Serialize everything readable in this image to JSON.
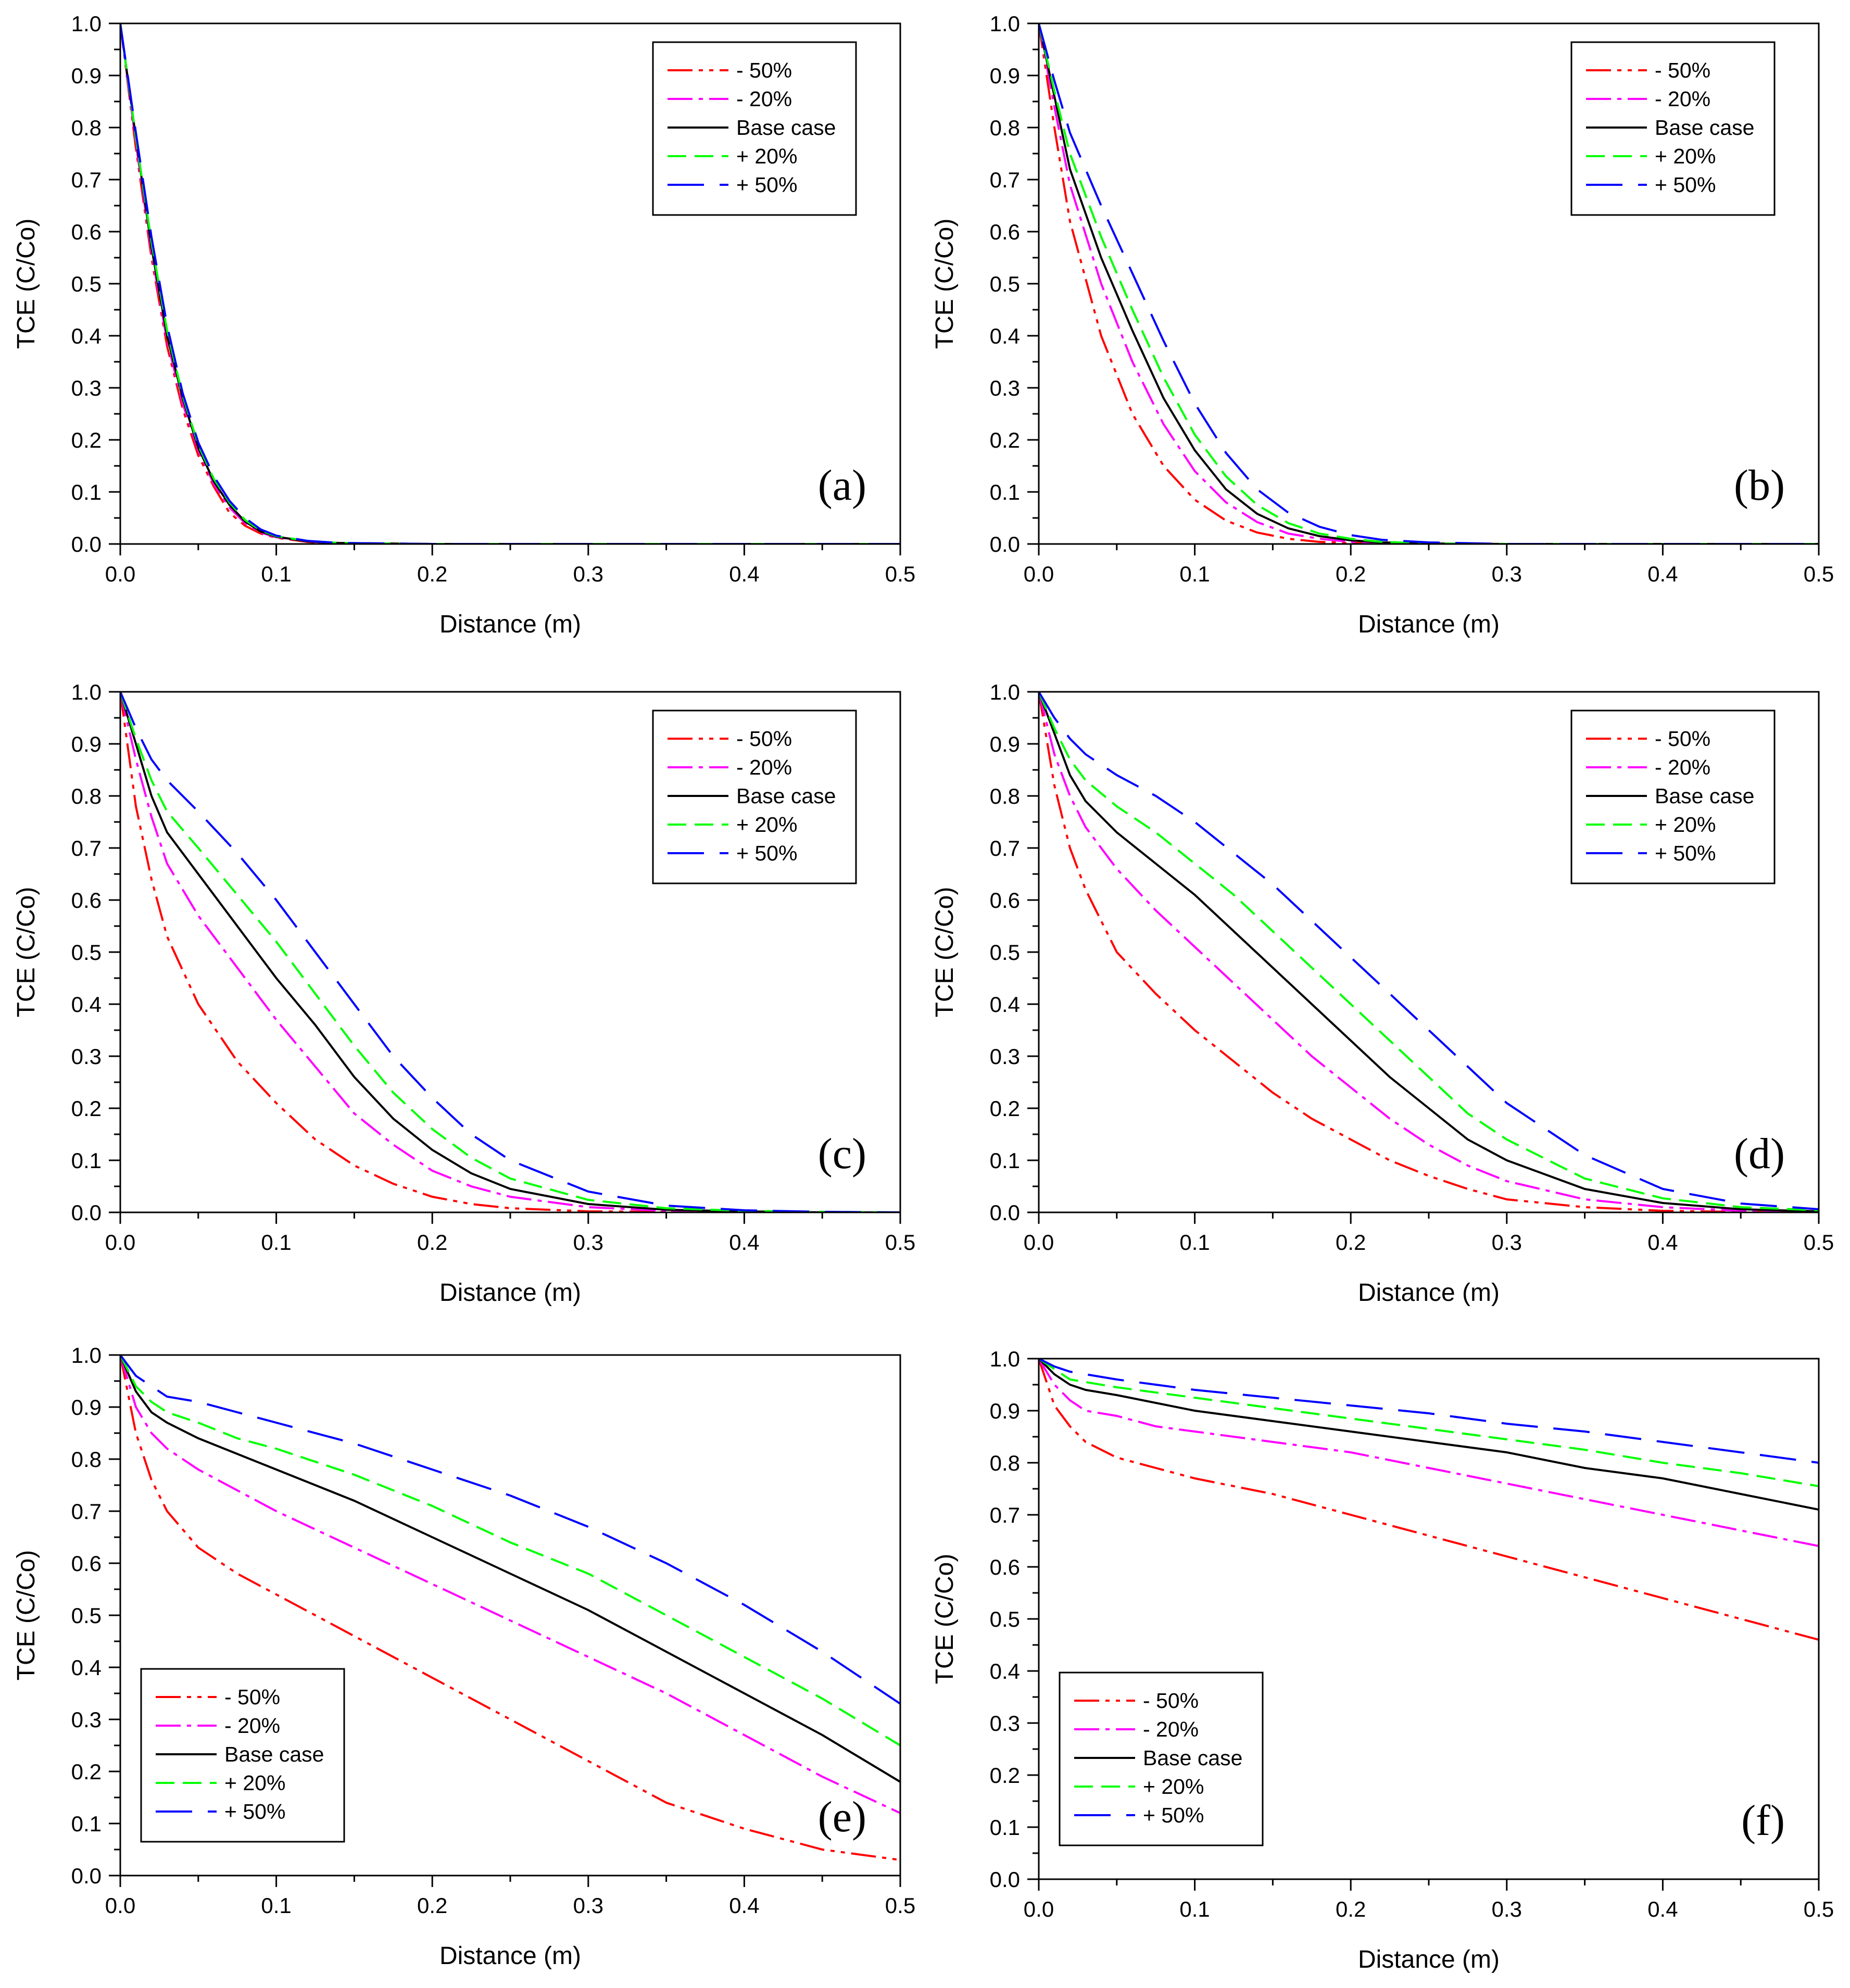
{
  "chart_data": [
    {
      "type": "line",
      "panel": "(a)",
      "xlabel": "Distance (m)",
      "ylabel": "TCE (C/Co)",
      "xlim": [
        0,
        0.5
      ],
      "ylim": [
        0,
        1.0
      ],
      "x": [
        0,
        0.01,
        0.02,
        0.03,
        0.04,
        0.05,
        0.06,
        0.07,
        0.08,
        0.09,
        0.1,
        0.12,
        0.14,
        0.2,
        0.3,
        0.4,
        0.5
      ],
      "series": [
        {
          "name": "- 50%",
          "values": [
            1.0,
            0.76,
            0.55,
            0.38,
            0.26,
            0.17,
            0.11,
            0.06,
            0.035,
            0.02,
            0.012,
            0.004,
            0.001,
            0,
            0,
            0,
            0
          ]
        },
        {
          "name": "- 20%",
          "values": [
            1.0,
            0.77,
            0.56,
            0.39,
            0.27,
            0.18,
            0.115,
            0.07,
            0.04,
            0.022,
            0.013,
            0.005,
            0.001,
            0,
            0,
            0,
            0
          ]
        },
        {
          "name": "Base case",
          "values": [
            1.0,
            0.78,
            0.57,
            0.4,
            0.28,
            0.185,
            0.12,
            0.075,
            0.043,
            0.024,
            0.014,
            0.005,
            0.002,
            0,
            0,
            0,
            0
          ]
        },
        {
          "name": "+ 20%",
          "values": [
            1.0,
            0.78,
            0.58,
            0.41,
            0.285,
            0.19,
            0.125,
            0.08,
            0.046,
            0.026,
            0.015,
            0.006,
            0.002,
            0,
            0,
            0,
            0
          ]
        },
        {
          "name": "+ 50%",
          "values": [
            1.0,
            0.79,
            0.59,
            0.42,
            0.29,
            0.195,
            0.13,
            0.083,
            0.05,
            0.028,
            0.016,
            0.006,
            0.002,
            0,
            0,
            0,
            0
          ]
        }
      ]
    },
    {
      "type": "line",
      "panel": "(b)",
      "xlabel": "Distance (m)",
      "ylabel": "TCE (C/Co)",
      "xlim": [
        0,
        0.5
      ],
      "ylim": [
        0,
        1.0
      ],
      "x": [
        0,
        0.01,
        0.02,
        0.04,
        0.06,
        0.08,
        0.1,
        0.12,
        0.14,
        0.16,
        0.18,
        0.2,
        0.22,
        0.25,
        0.3,
        0.4,
        0.5
      ],
      "series": [
        {
          "name": "- 50%",
          "values": [
            1.0,
            0.8,
            0.62,
            0.4,
            0.25,
            0.15,
            0.085,
            0.045,
            0.022,
            0.01,
            0.004,
            0.002,
            0.001,
            0,
            0,
            0,
            0
          ]
        },
        {
          "name": "- 20%",
          "values": [
            1.0,
            0.84,
            0.69,
            0.5,
            0.35,
            0.23,
            0.14,
            0.08,
            0.042,
            0.02,
            0.01,
            0.004,
            0.002,
            0,
            0,
            0,
            0
          ]
        },
        {
          "name": "Base case",
          "values": [
            1.0,
            0.86,
            0.72,
            0.55,
            0.41,
            0.28,
            0.18,
            0.105,
            0.058,
            0.03,
            0.015,
            0.007,
            0.003,
            0.001,
            0,
            0,
            0
          ]
        },
        {
          "name": "+ 20%",
          "values": [
            1.0,
            0.87,
            0.75,
            0.59,
            0.45,
            0.32,
            0.21,
            0.13,
            0.075,
            0.04,
            0.02,
            0.01,
            0.004,
            0.001,
            0,
            0,
            0
          ]
        },
        {
          "name": "+ 50%",
          "values": [
            1.0,
            0.89,
            0.79,
            0.65,
            0.52,
            0.39,
            0.27,
            0.175,
            0.105,
            0.06,
            0.033,
            0.017,
            0.008,
            0.003,
            0,
            0,
            0
          ]
        }
      ]
    },
    {
      "type": "line",
      "panel": "(c)",
      "xlabel": "Distance (m)",
      "ylabel": "TCE (C/Co)",
      "xlim": [
        0,
        0.5
      ],
      "ylim": [
        0,
        1.0
      ],
      "x": [
        0,
        0.01,
        0.02,
        0.03,
        0.05,
        0.075,
        0.1,
        0.125,
        0.15,
        0.175,
        0.2,
        0.225,
        0.25,
        0.3,
        0.35,
        0.4,
        0.45,
        0.5
      ],
      "series": [
        {
          "name": "- 50%",
          "values": [
            1.0,
            0.78,
            0.64,
            0.53,
            0.4,
            0.29,
            0.21,
            0.14,
            0.09,
            0.055,
            0.03,
            0.016,
            0.008,
            0.002,
            0.001,
            0,
            0,
            0
          ]
        },
        {
          "name": "- 20%",
          "values": [
            1.0,
            0.87,
            0.76,
            0.67,
            0.57,
            0.47,
            0.37,
            0.28,
            0.19,
            0.13,
            0.08,
            0.05,
            0.03,
            0.01,
            0.003,
            0.001,
            0,
            0
          ]
        },
        {
          "name": "Base case",
          "values": [
            1.0,
            0.9,
            0.8,
            0.73,
            0.65,
            0.55,
            0.45,
            0.36,
            0.26,
            0.18,
            0.12,
            0.075,
            0.045,
            0.016,
            0.005,
            0.002,
            0,
            0
          ]
        },
        {
          "name": "+ 20%",
          "values": [
            1.0,
            0.91,
            0.83,
            0.77,
            0.7,
            0.61,
            0.52,
            0.42,
            0.32,
            0.23,
            0.16,
            0.105,
            0.065,
            0.024,
            0.008,
            0.003,
            0.001,
            0
          ]
        },
        {
          "name": "+ 50%",
          "values": [
            1.0,
            0.93,
            0.87,
            0.83,
            0.77,
            0.69,
            0.6,
            0.5,
            0.4,
            0.3,
            0.22,
            0.15,
            0.1,
            0.04,
            0.013,
            0.004,
            0.001,
            0
          ]
        }
      ]
    },
    {
      "type": "line",
      "panel": "(d)",
      "xlabel": "Distance (m)",
      "ylabel": "TCE (C/Co)",
      "xlim": [
        0,
        0.5
      ],
      "ylim": [
        0,
        1.0
      ],
      "x": [
        0,
        0.01,
        0.02,
        0.03,
        0.05,
        0.075,
        0.1,
        0.125,
        0.15,
        0.175,
        0.2,
        0.225,
        0.25,
        0.275,
        0.3,
        0.35,
        0.4,
        0.45,
        0.5
      ],
      "series": [
        {
          "name": "- 50%",
          "values": [
            1.0,
            0.82,
            0.7,
            0.62,
            0.5,
            0.42,
            0.35,
            0.29,
            0.23,
            0.18,
            0.14,
            0.1,
            0.07,
            0.045,
            0.025,
            0.01,
            0.003,
            0.001,
            0
          ]
        },
        {
          "name": "- 20%",
          "values": [
            1.0,
            0.88,
            0.8,
            0.74,
            0.66,
            0.58,
            0.51,
            0.44,
            0.37,
            0.3,
            0.24,
            0.18,
            0.13,
            0.09,
            0.06,
            0.025,
            0.01,
            0.003,
            0.001
          ]
        },
        {
          "name": "Base case",
          "values": [
            1.0,
            0.92,
            0.84,
            0.79,
            0.73,
            0.67,
            0.61,
            0.54,
            0.47,
            0.4,
            0.33,
            0.26,
            0.2,
            0.14,
            0.1,
            0.045,
            0.018,
            0.006,
            0.002
          ]
        },
        {
          "name": "+ 20%",
          "values": [
            1.0,
            0.93,
            0.87,
            0.83,
            0.78,
            0.73,
            0.67,
            0.61,
            0.54,
            0.47,
            0.4,
            0.33,
            0.26,
            0.19,
            0.14,
            0.065,
            0.027,
            0.01,
            0.004
          ]
        },
        {
          "name": "+ 50%",
          "values": [
            1.0,
            0.95,
            0.91,
            0.88,
            0.84,
            0.8,
            0.75,
            0.69,
            0.63,
            0.56,
            0.49,
            0.42,
            0.35,
            0.28,
            0.21,
            0.11,
            0.045,
            0.017,
            0.006
          ]
        }
      ]
    },
    {
      "type": "line",
      "panel": "(e)",
      "xlabel": "Distance (m)",
      "ylabel": "TCE (C/Co)",
      "xlim": [
        0,
        0.5
      ],
      "ylim": [
        0,
        1.0
      ],
      "x": [
        0,
        0.01,
        0.02,
        0.03,
        0.05,
        0.075,
        0.1,
        0.15,
        0.2,
        0.25,
        0.3,
        0.35,
        0.4,
        0.45,
        0.5
      ],
      "series": [
        {
          "name": "- 50%",
          "values": [
            1.0,
            0.85,
            0.76,
            0.7,
            0.63,
            0.58,
            0.54,
            0.46,
            0.38,
            0.3,
            0.22,
            0.14,
            0.09,
            0.05,
            0.03
          ]
        },
        {
          "name": "- 20%",
          "values": [
            1.0,
            0.9,
            0.85,
            0.82,
            0.78,
            0.74,
            0.7,
            0.63,
            0.56,
            0.49,
            0.42,
            0.35,
            0.27,
            0.19,
            0.12
          ]
        },
        {
          "name": "Base case",
          "values": [
            1.0,
            0.93,
            0.89,
            0.87,
            0.84,
            0.81,
            0.78,
            0.72,
            0.65,
            0.58,
            0.51,
            0.43,
            0.35,
            0.27,
            0.18
          ]
        },
        {
          "name": "+ 20%",
          "values": [
            1.0,
            0.94,
            0.91,
            0.89,
            0.87,
            0.84,
            0.82,
            0.77,
            0.71,
            0.64,
            0.58,
            0.5,
            0.42,
            0.34,
            0.25
          ]
        },
        {
          "name": "+ 50%",
          "values": [
            1.0,
            0.96,
            0.94,
            0.92,
            0.91,
            0.89,
            0.87,
            0.83,
            0.78,
            0.73,
            0.67,
            0.6,
            0.52,
            0.43,
            0.33
          ]
        }
      ]
    },
    {
      "type": "line",
      "panel": "(f)",
      "xlabel": "Distance (m)",
      "ylabel": "TCE (C/Co)",
      "xlim": [
        0,
        0.5
      ],
      "ylim": [
        0,
        1.0
      ],
      "x": [
        0,
        0.01,
        0.02,
        0.03,
        0.05,
        0.075,
        0.1,
        0.15,
        0.2,
        0.25,
        0.3,
        0.35,
        0.4,
        0.45,
        0.5
      ],
      "series": [
        {
          "name": "- 50%",
          "values": [
            1.0,
            0.91,
            0.87,
            0.84,
            0.81,
            0.79,
            0.77,
            0.74,
            0.7,
            0.66,
            0.62,
            0.58,
            0.54,
            0.5,
            0.46
          ]
        },
        {
          "name": "- 20%",
          "values": [
            1.0,
            0.95,
            0.92,
            0.9,
            0.89,
            0.87,
            0.86,
            0.84,
            0.82,
            0.79,
            0.76,
            0.73,
            0.7,
            0.67,
            0.64
          ]
        },
        {
          "name": "Base case",
          "values": [
            1.0,
            0.97,
            0.95,
            0.94,
            0.93,
            0.915,
            0.9,
            0.88,
            0.86,
            0.84,
            0.82,
            0.79,
            0.77,
            0.74,
            0.71
          ]
        },
        {
          "name": "+ 20%",
          "values": [
            1.0,
            0.98,
            0.96,
            0.955,
            0.945,
            0.935,
            0.925,
            0.905,
            0.885,
            0.865,
            0.845,
            0.825,
            0.8,
            0.78,
            0.755
          ]
        },
        {
          "name": "+ 50%",
          "values": [
            1.0,
            0.985,
            0.975,
            0.97,
            0.96,
            0.95,
            0.94,
            0.925,
            0.91,
            0.895,
            0.875,
            0.86,
            0.84,
            0.82,
            0.8
          ]
        }
      ]
    }
  ],
  "styles": [
    {
      "color": "#ff0000",
      "dash": "48,12,8,12,8,12"
    },
    {
      "color": "#ff00ff",
      "dash": "48,12,8,12"
    },
    {
      "color": "#000000",
      "dash": ""
    },
    {
      "color": "#00ff00",
      "dash": "36,16"
    },
    {
      "color": "#0000ff",
      "dash": "70,30"
    }
  ],
  "legend_positions": [
    "top-right",
    "top-right",
    "top-right",
    "top-right",
    "bottom-left",
    "bottom-left"
  ],
  "x_ticks": [
    "0.0",
    "0.1",
    "0.2",
    "0.3",
    "0.4",
    "0.5"
  ],
  "y_ticks": [
    "0.0",
    "0.1",
    "0.2",
    "0.3",
    "0.4",
    "0.5",
    "0.6",
    "0.7",
    "0.8",
    "0.9",
    "1.0"
  ]
}
